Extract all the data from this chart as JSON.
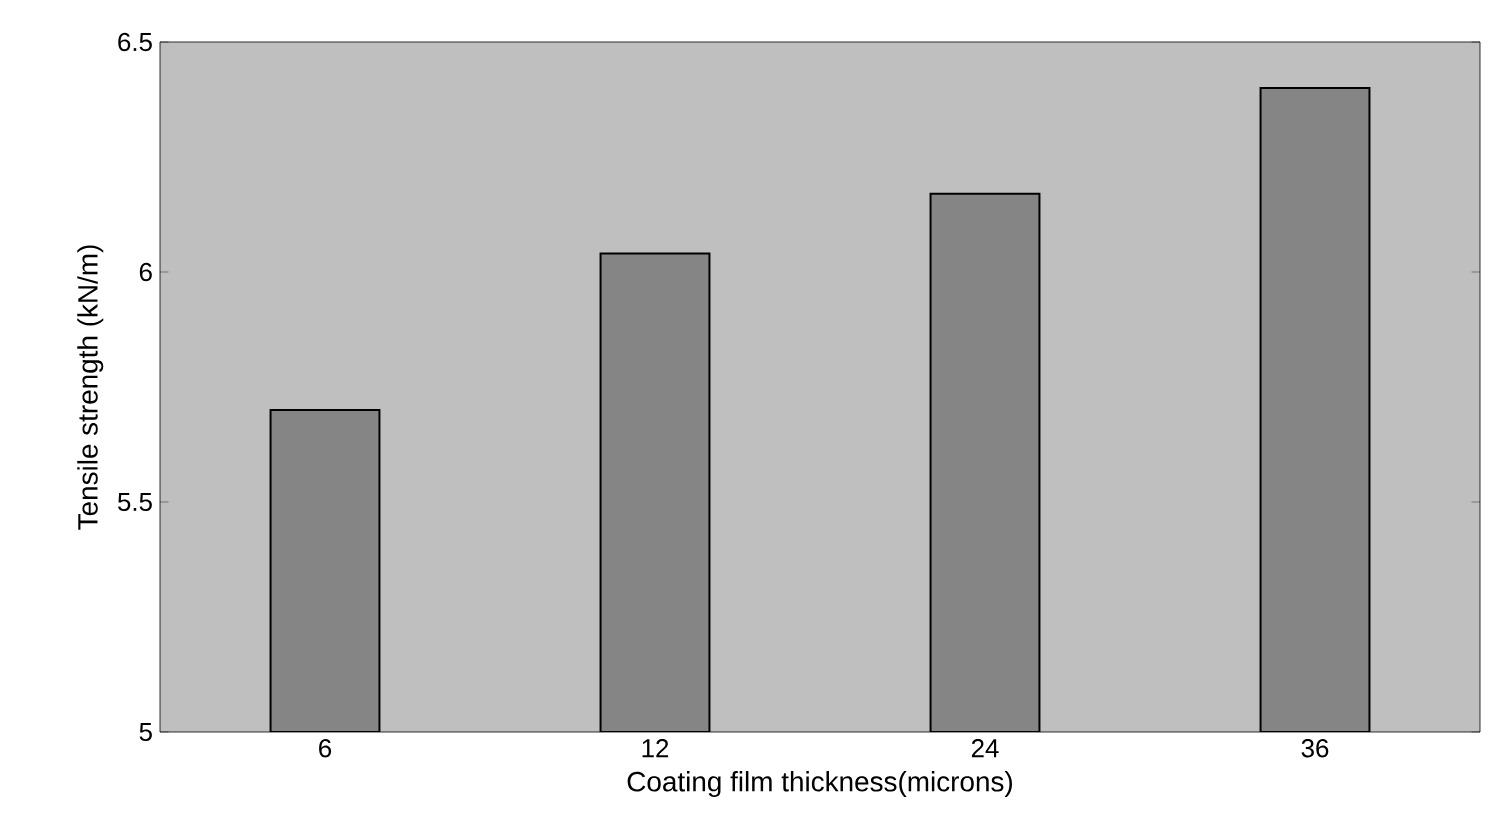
{
  "chart_data": {
    "type": "bar",
    "xlabel": "Coating film thickness(microns)",
    "ylabel": "Tensile strength (kN/m)",
    "categories": [
      "6",
      "12",
      "24",
      "36"
    ],
    "values": [
      5.7,
      6.04,
      6.17,
      6.4
    ],
    "color": "#858585",
    "ylim": [
      5,
      6.5
    ],
    "yticks": [
      5,
      5.5,
      6,
      6.5
    ],
    "grid": false
  }
}
